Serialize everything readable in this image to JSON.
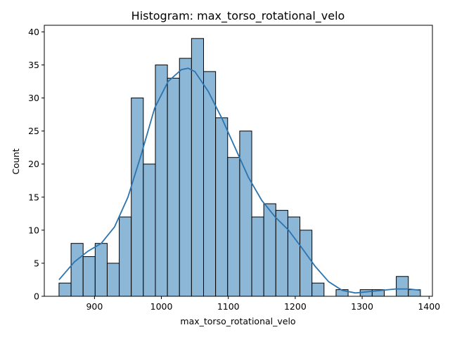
{
  "chart_data": {
    "type": "bar",
    "title": "Histogram: max_torso_rotational_velo",
    "xlabel": "max_torso_rotational_velo",
    "ylabel": "Count",
    "bin_start": 847,
    "bin_width": 18,
    "counts": [
      2,
      8,
      6,
      8,
      5,
      12,
      30,
      20,
      35,
      33,
      36,
      39,
      34,
      27,
      21,
      25,
      12,
      14,
      13,
      12,
      10,
      2,
      0,
      1,
      0,
      1,
      1,
      0,
      3,
      1
    ],
    "xlim": [
      825,
      1405
    ],
    "ylim": [
      0,
      41
    ],
    "x_ticks": [
      900,
      1000,
      1100,
      1200,
      1300,
      1400
    ],
    "y_ticks": [
      0,
      5,
      10,
      15,
      20,
      25,
      30,
      35,
      40
    ],
    "kde": {
      "x": [
        847,
        870,
        890,
        910,
        930,
        950,
        970,
        990,
        1010,
        1030,
        1040,
        1050,
        1070,
        1090,
        1110,
        1130,
        1150,
        1170,
        1190,
        1210,
        1230,
        1250,
        1270,
        1290,
        1310,
        1330,
        1350,
        1370,
        1387
      ],
      "y": [
        2.5,
        5.2,
        6.8,
        8.0,
        10.5,
        15.0,
        21.5,
        28.5,
        32.5,
        34.3,
        34.5,
        34.0,
        31.0,
        27.0,
        22.5,
        18.0,
        14.5,
        12.0,
        10.0,
        7.3,
        4.5,
        2.2,
        0.9,
        0.5,
        0.7,
        0.9,
        1.1,
        1.1,
        0.9
      ]
    },
    "grid": false,
    "legend": "none",
    "bar_color": "#8db7d7",
    "line_color": "#2a74b0"
  }
}
